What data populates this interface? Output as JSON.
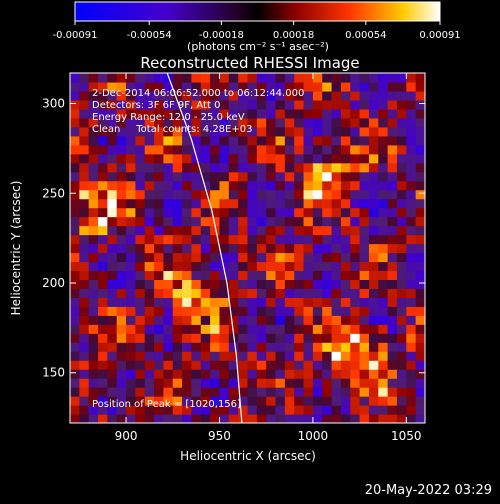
{
  "chart_data": {
    "type": "heatmap",
    "title": "Reconstructed RHESSI Image",
    "xlabel": "Heliocentric X (arcsec)",
    "ylabel": "Heliocentric Y (arcsec)",
    "xlim": [
      870,
      1060
    ],
    "ylim": [
      122,
      317
    ],
    "x_ticks": [
      900,
      950,
      1000,
      1050
    ],
    "y_ticks": [
      150,
      200,
      250,
      300
    ],
    "colorbar": {
      "ticks": [
        "-0.00091",
        "-0.00054",
        "-0.00018",
        "0.00018",
        "0.00054",
        "0.00091"
      ],
      "range": [
        -0.00091,
        0.00091
      ],
      "unit_label": "(photons cm⁻² s⁻¹ asec⁻²)"
    },
    "annotations": [
      "2-Dec-2014 06:06:52.000 to 06:12:44.000",
      "Detectors: 3F 6F 9F, Att 0",
      "Energy Range: 12.0 - 25.0 keV",
      "Clean     Total counts: 4.28E+03"
    ],
    "peak_label": "Position of Peak = [1020,156]",
    "peak": [
      1020,
      156
    ],
    "limb_curve": [
      [
        922,
        317
      ],
      [
        935,
        280
      ],
      [
        946,
        240
      ],
      [
        954,
        200
      ],
      [
        959,
        160
      ],
      [
        962,
        122
      ]
    ],
    "bright_sources": [
      {
        "x": 1020,
        "y": 156,
        "value": 0.00091
      },
      {
        "x": 1005,
        "y": 260,
        "value": 0.0006
      },
      {
        "x": 880,
        "y": 240,
        "value": 0.00055
      },
      {
        "x": 935,
        "y": 190,
        "value": 0.0005
      }
    ]
  },
  "footer": {
    "timestamp": "20-May-2022 03:29"
  }
}
